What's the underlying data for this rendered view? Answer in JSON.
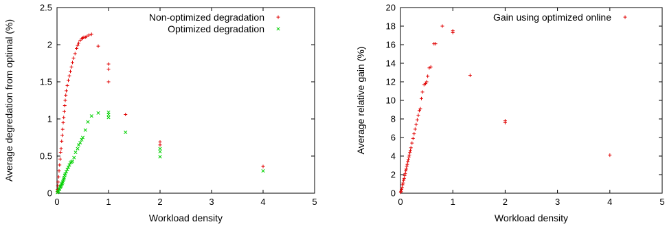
{
  "chart_data": [
    {
      "type": "scatter",
      "title": "",
      "xlabel": "Workload density",
      "ylabel": "Average degredation from optimal (%)",
      "xlim": [
        0,
        5
      ],
      "ylim": [
        0,
        2.5
      ],
      "xticks": [
        "0",
        "1",
        "2",
        "3",
        "4",
        "5"
      ],
      "yticks": [
        "0",
        "0.5",
        "1",
        "1.5",
        "2",
        "2.5"
      ],
      "grid": false,
      "legend_position": "top-right",
      "series": [
        {
          "name": "Non-optimized degradation",
          "color": "#e00000",
          "marker": "plus",
          "x": [
            0.005,
            0.01,
            0.015,
            0.02,
            0.03,
            0.04,
            0.05,
            0.06,
            0.07,
            0.08,
            0.09,
            0.1,
            0.11,
            0.12,
            0.13,
            0.14,
            0.15,
            0.16,
            0.17,
            0.18,
            0.2,
            0.22,
            0.24,
            0.26,
            0.28,
            0.3,
            0.32,
            0.35,
            0.38,
            0.4,
            0.42,
            0.45,
            0.48,
            0.5,
            0.52,
            0.55,
            0.58,
            0.62,
            0.67,
            0.8,
            1.0,
            1.0,
            1.0,
            1.33,
            2.0,
            2.0,
            4.0
          ],
          "y": [
            0.02,
            0.05,
            0.1,
            0.15,
            0.22,
            0.3,
            0.38,
            0.46,
            0.55,
            0.6,
            0.7,
            0.78,
            0.86,
            0.95,
            1.02,
            1.1,
            1.18,
            1.25,
            1.32,
            1.38,
            1.45,
            1.52,
            1.58,
            1.64,
            1.7,
            1.76,
            1.82,
            1.88,
            1.95,
            1.99,
            2.02,
            2.06,
            2.08,
            2.09,
            2.1,
            2.1,
            2.11,
            2.13,
            2.14,
            1.98,
            1.74,
            1.67,
            1.5,
            1.06,
            0.69,
            0.65,
            0.36
          ]
        },
        {
          "name": "Optimized degradation",
          "color": "#00d000",
          "marker": "cross",
          "x": [
            0.01,
            0.02,
            0.03,
            0.04,
            0.05,
            0.06,
            0.07,
            0.08,
            0.09,
            0.1,
            0.11,
            0.12,
            0.13,
            0.14,
            0.15,
            0.16,
            0.18,
            0.2,
            0.22,
            0.24,
            0.26,
            0.28,
            0.3,
            0.33,
            0.36,
            0.4,
            0.42,
            0.45,
            0.48,
            0.5,
            0.55,
            0.6,
            0.67,
            0.8,
            1.0,
            1.0,
            1.0,
            1.33,
            2.0,
            2.0,
            2.0,
            4.0
          ],
          "y": [
            0.01,
            0.02,
            0.03,
            0.05,
            0.06,
            0.08,
            0.09,
            0.1,
            0.12,
            0.13,
            0.15,
            0.17,
            0.19,
            0.21,
            0.24,
            0.26,
            0.29,
            0.32,
            0.35,
            0.38,
            0.41,
            0.42,
            0.43,
            0.48,
            0.55,
            0.6,
            0.65,
            0.68,
            0.72,
            0.75,
            0.85,
            0.96,
            1.04,
            1.08,
            1.09,
            1.06,
            1.02,
            0.82,
            0.6,
            0.56,
            0.49,
            0.3
          ]
        }
      ]
    },
    {
      "type": "scatter",
      "title": "",
      "xlabel": "Workload density",
      "ylabel": "Average relative gain (%)",
      "xlim": [
        0,
        5
      ],
      "ylim": [
        0,
        20
      ],
      "xticks": [
        "0",
        "1",
        "2",
        "3",
        "4",
        "5"
      ],
      "yticks": [
        "0",
        "2",
        "4",
        "6",
        "8",
        "10",
        "12",
        "14",
        "16",
        "18",
        "20"
      ],
      "grid": false,
      "legend_position": "top-right",
      "series": [
        {
          "name": "Gain using optimized online",
          "color": "#e00000",
          "marker": "plus",
          "x": [
            0.005,
            0.01,
            0.02,
            0.03,
            0.04,
            0.05,
            0.06,
            0.07,
            0.08,
            0.09,
            0.1,
            0.11,
            0.12,
            0.13,
            0.14,
            0.15,
            0.16,
            0.17,
            0.18,
            0.19,
            0.2,
            0.22,
            0.24,
            0.26,
            0.28,
            0.3,
            0.32,
            0.34,
            0.36,
            0.38,
            0.4,
            0.42,
            0.45,
            0.48,
            0.5,
            0.52,
            0.55,
            0.58,
            0.64,
            0.67,
            0.8,
            1.0,
            1.0,
            1.33,
            2.0,
            2.0,
            4.0
          ],
          "y": [
            0.1,
            0.2,
            0.4,
            0.6,
            0.9,
            1.1,
            1.4,
            1.6,
            1.9,
            2.1,
            2.4,
            2.6,
            2.9,
            3.1,
            3.4,
            3.6,
            3.9,
            4.1,
            4.4,
            4.6,
            4.9,
            5.4,
            5.9,
            6.4,
            6.9,
            7.4,
            7.9,
            8.4,
            8.9,
            9.1,
            10.2,
            10.9,
            11.7,
            11.8,
            12.0,
            12.6,
            13.5,
            13.6,
            16.1,
            16.1,
            18.0,
            17.5,
            17.3,
            12.7,
            7.8,
            7.6,
            4.1
          ]
        }
      ]
    }
  ]
}
